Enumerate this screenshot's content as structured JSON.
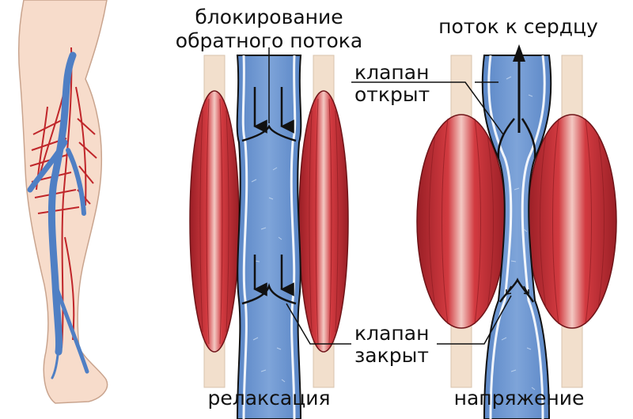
{
  "labels": {
    "block_backflow_1": "блокирование",
    "block_backflow_2": "обратного потока",
    "flow_to_heart": "поток к сердцу",
    "valve_open_1": "клапан",
    "valve_open_2": "открыт",
    "valve_closed_1": "клапан",
    "valve_closed_2": "закрыт",
    "relaxation": "релаксация",
    "tension": "напряжение"
  },
  "colors": {
    "skin": "#f7dccb",
    "skin_outline": "#c9a48e",
    "vein_blue": "#4f7fc4",
    "vein_blue_light": "#6f98d3",
    "artery_red": "#c0262a",
    "muscle_red": "#c8323a",
    "muscle_dark": "#8e1c22",
    "tendon": "#f2dfcc",
    "outline": "#1a1a1a"
  }
}
